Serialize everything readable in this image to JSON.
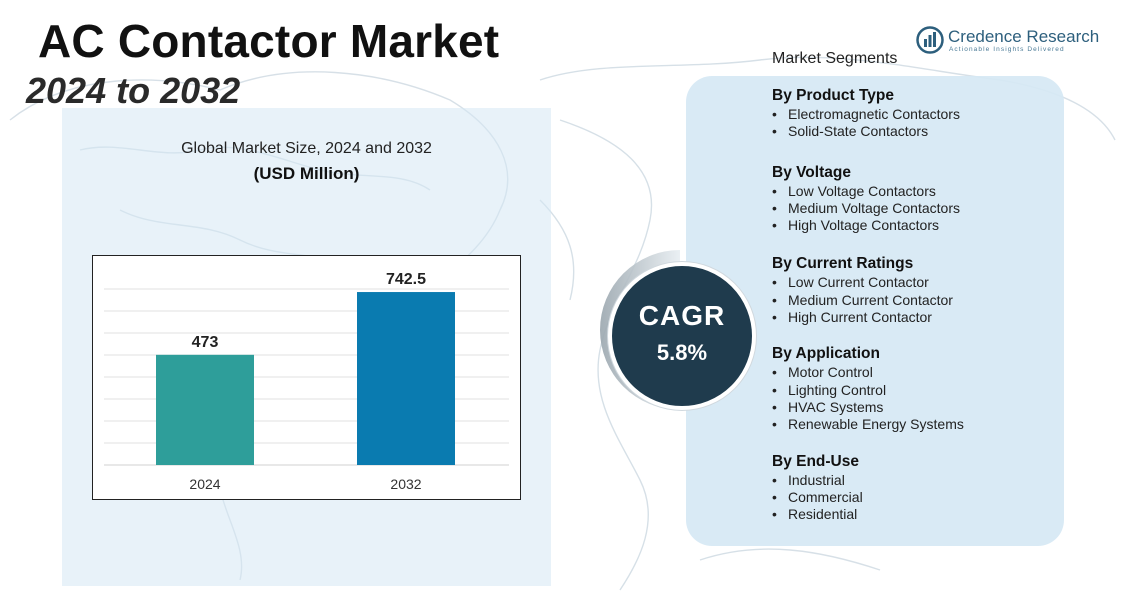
{
  "header": {
    "title": "AC Contactor Market",
    "subtitle": "2024 to 2032"
  },
  "logo": {
    "name": "Credence Research",
    "tagline": "Actionable Insights Delivered"
  },
  "chart_data": {
    "type": "bar",
    "title": "Global Market Size, 2024 and 2032",
    "unit_label": "(USD Million)",
    "categories": [
      "2024",
      "2032"
    ],
    "values": [
      473,
      742.5
    ],
    "value_labels": [
      "473",
      "742.5"
    ],
    "ylim": [
      0,
      850
    ],
    "grid": true,
    "colors": [
      "#2e9e9a",
      "#0a7bb0"
    ]
  },
  "cagr": {
    "label": "CAGR",
    "value": "5.8%"
  },
  "segments": {
    "label": "Market Segments",
    "groups": [
      {
        "heading": "By Product Type",
        "items": [
          "Electromagnetic Contactors",
          "Solid-State Contactors"
        ]
      },
      {
        "heading": "By Voltage",
        "items": [
          "Low Voltage Contactors",
          "Medium Voltage Contactors",
          "High Voltage Contactors"
        ]
      },
      {
        "heading": "By Current Ratings",
        "items": [
          "Low Current Contactor",
          "Medium Current Contactor",
          "High Current Contactor"
        ]
      },
      {
        "heading": "By Application",
        "items": [
          "Motor Control",
          "Lighting Control",
          "HVAC Systems",
          "Renewable Energy Systems"
        ]
      },
      {
        "heading": "By End-Use",
        "items": [
          "Industrial",
          "Commercial",
          "Residential"
        ]
      }
    ]
  }
}
